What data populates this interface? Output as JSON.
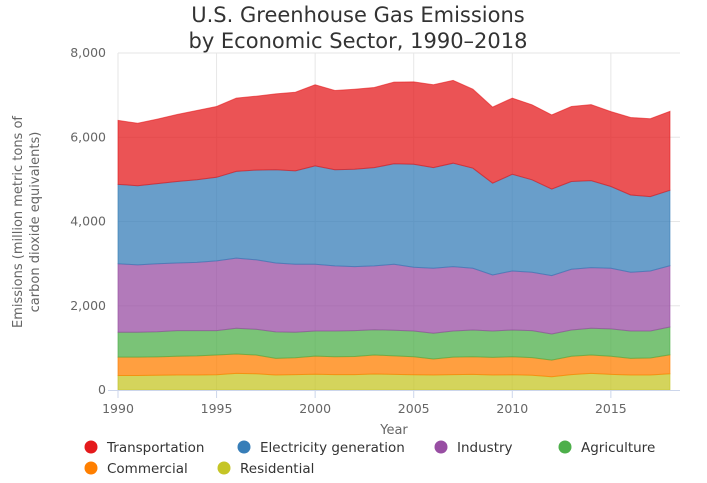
{
  "chart_data": {
    "type": "area",
    "stacked": true,
    "title": "U.S. Greenhouse Gas Emissions",
    "subtitle": "by Economic Sector, 1990–2018",
    "xlabel": "Year",
    "ylabel": "Emissions (million metric tons of carbon dioxide equivalents)",
    "ylabel_lines": [
      "Emissions (million metric tons of",
      "carbon dioxide equivalents)"
    ],
    "x": [
      1990,
      1991,
      1992,
      1993,
      1994,
      1995,
      1996,
      1997,
      1998,
      1999,
      2000,
      2001,
      2002,
      2003,
      2004,
      2005,
      2006,
      2007,
      2008,
      2009,
      2010,
      2011,
      2012,
      2013,
      2014,
      2015,
      2016,
      2017,
      2018
    ],
    "xlim": [
      1990,
      2018
    ],
    "ylim": [
      0,
      8000
    ],
    "x_ticks": [
      1990,
      1995,
      2000,
      2005,
      2010,
      2015
    ],
    "x_tick_labels": [
      "1990",
      "1995",
      "2000",
      "2005",
      "2010",
      "2015"
    ],
    "y_ticks": [
      0,
      2000,
      4000,
      6000,
      8000
    ],
    "y_tick_labels": [
      "0",
      "2,000",
      "4,000",
      "6,000",
      "8,000"
    ],
    "grid": true,
    "legend_position": "bottom",
    "stack_order_bottom_to_top": [
      "Residential",
      "Commercial",
      "Agriculture",
      "Industry",
      "Electricity generation",
      "Transportation"
    ],
    "series": [
      {
        "name": "Transportation",
        "color": "#e41a1c",
        "values": [
          1520,
          1480,
          1530,
          1590,
          1645,
          1680,
          1740,
          1755,
          1800,
          1870,
          1925,
          1880,
          1900,
          1900,
          1940,
          1955,
          1965,
          1965,
          1875,
          1805,
          1810,
          1780,
          1760,
          1780,
          1805,
          1780,
          1840,
          1850,
          1875
        ]
      },
      {
        "name": "Electricity generation",
        "color": "#377eb8",
        "values": [
          1885,
          1880,
          1905,
          1935,
          1960,
          1985,
          2060,
          2130,
          2215,
          2215,
          2335,
          2285,
          2310,
          2335,
          2385,
          2445,
          2390,
          2455,
          2375,
          2180,
          2295,
          2195,
          2055,
          2085,
          2065,
          1940,
          1835,
          1765,
          1790
        ]
      },
      {
        "name": "Industry",
        "color": "#984ea3",
        "values": [
          1625,
          1600,
          1610,
          1605,
          1620,
          1655,
          1665,
          1650,
          1635,
          1615,
          1585,
          1545,
          1520,
          1515,
          1565,
          1515,
          1545,
          1530,
          1465,
          1330,
          1400,
          1385,
          1385,
          1440,
          1440,
          1440,
          1395,
          1425,
          1455
        ]
      },
      {
        "name": "Agriculture",
        "color": "#4daf4a",
        "values": [
          590,
          590,
          600,
          610,
          600,
          580,
          610,
          610,
          630,
          605,
          595,
          610,
          615,
          600,
          610,
          610,
          610,
          620,
          635,
          625,
          635,
          640,
          620,
          625,
          635,
          650,
          650,
          640,
          660
        ]
      },
      {
        "name": "Commercial",
        "color": "#ff7f00",
        "values": [
          435,
          435,
          435,
          445,
          455,
          470,
          460,
          445,
          395,
          400,
          430,
          425,
          430,
          450,
          440,
          430,
          380,
          415,
          420,
          420,
          430,
          420,
          395,
          435,
          435,
          430,
          395,
          405,
          450
        ]
      },
      {
        "name": "Residential",
        "color": "#c5c526",
        "values": [
          345,
          345,
          350,
          355,
          355,
          360,
          395,
          385,
          355,
          365,
          375,
          365,
          365,
          380,
          370,
          360,
          355,
          365,
          370,
          355,
          360,
          350,
          315,
          365,
          395,
          370,
          355,
          355,
          385
        ]
      }
    ]
  }
}
